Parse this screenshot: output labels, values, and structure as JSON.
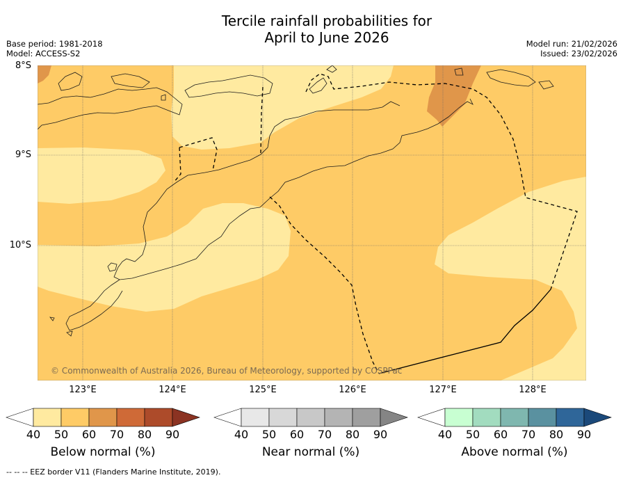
{
  "title_line1": "Tercile rainfall probabilities for",
  "title_line2": "April to June 2026",
  "left_info": {
    "base_period": "Base period: 1981-2018",
    "model": "Model: ACCESS-S2"
  },
  "right_info": {
    "model_run": "Model run: 21/02/2026",
    "issued": "Issued: 23/02/2026"
  },
  "map": {
    "lat_labels": [
      "8°S",
      "9°S",
      "10°S"
    ],
    "lon_labels": [
      "123°E",
      "124°E",
      "125°E",
      "126°E",
      "127°E",
      "128°E"
    ],
    "copyright": "© Commonwealth of Australia 2026, Bureau of Meteorology, supported by COSPPac"
  },
  "colorbars": [
    {
      "label": "Below normal (%)",
      "ticks": [
        "40",
        "50",
        "60",
        "70",
        "80",
        "90"
      ],
      "colors": [
        "#ffeaa0",
        "#fecb66",
        "#e0964a",
        "#cf6a37",
        "#ad4b2a",
        "#8b3322"
      ]
    },
    {
      "label": "Near normal (%)",
      "ticks": [
        "40",
        "50",
        "60",
        "70",
        "80",
        "90"
      ],
      "colors": [
        "#e8e8e8",
        "#d8d8d8",
        "#c8c8c8",
        "#b4b4b4",
        "#9f9f9f",
        "#858585"
      ]
    },
    {
      "label": "Above normal (%)",
      "ticks": [
        "40",
        "50",
        "60",
        "70",
        "80",
        "90"
      ],
      "colors": [
        "#c8ffd2",
        "#a2dcbf",
        "#7fb7af",
        "#5a91a0",
        "#2f6699",
        "#1b497a"
      ]
    }
  ],
  "footer": "--  --  -- EEZ border V11 (Flanders Marine Institute, 2019)."
}
